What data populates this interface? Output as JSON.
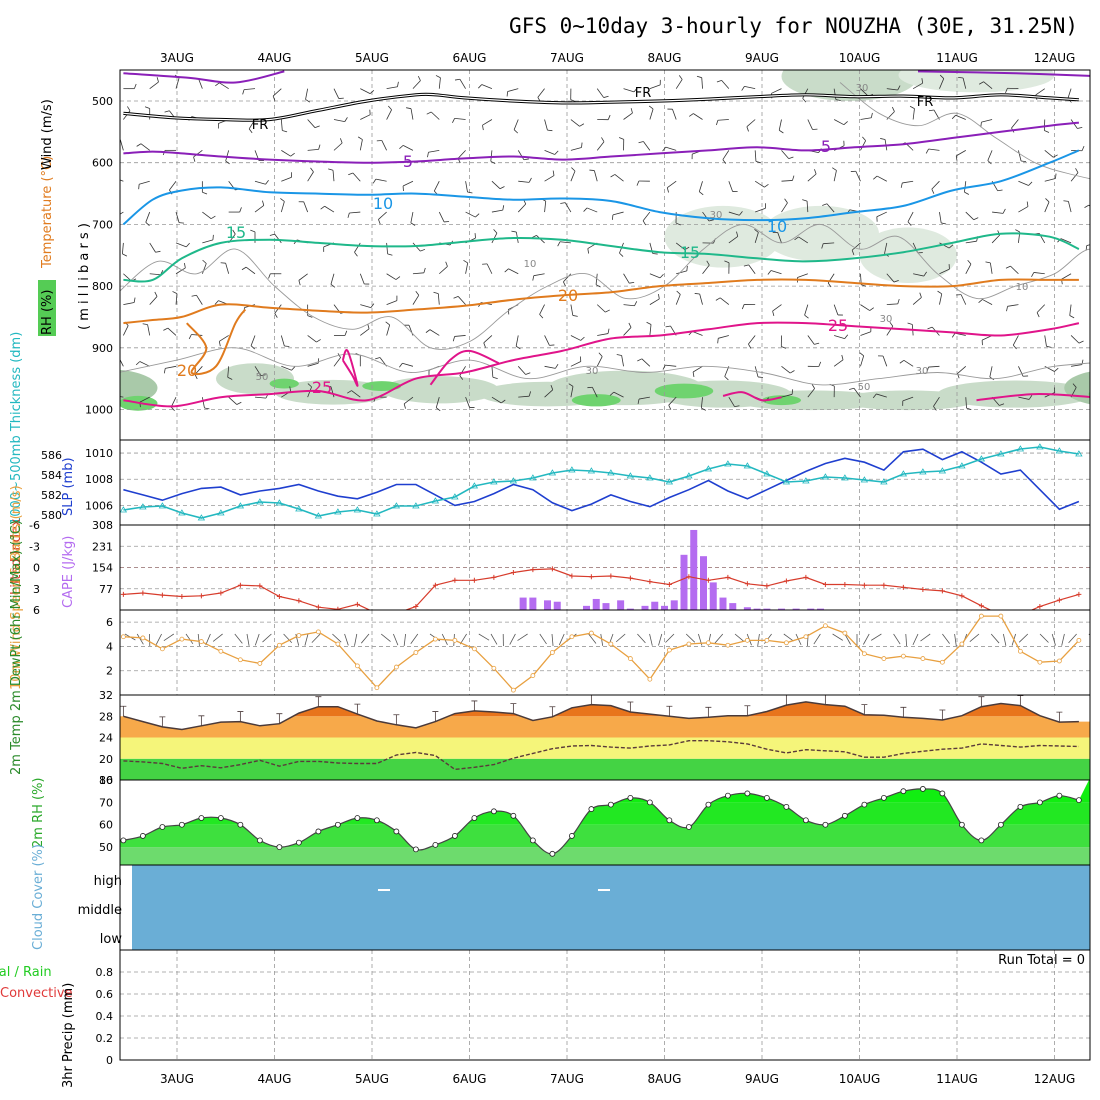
{
  "title": "GFS 0~10day 3-hourly for NOUZHA (30E, 31.25N)",
  "dates": [
    "3AUG",
    "4AUG",
    "5AUG",
    "6AUG",
    "7AUG",
    "8AUG",
    "9AUG",
    "10AUG",
    "11AUG",
    "12AUG"
  ],
  "colors": {
    "purple": "#8a1fb8",
    "blue": "#1a96e6",
    "green": "#1fb88a",
    "orange": "#e07b1e",
    "magenta": "#e0148a",
    "slp": "#1f3fcf",
    "thick": "#23b8c0",
    "cape": "#b46cf0",
    "li": "#d73c2c",
    "wind": "#e8a040",
    "rhgreen": "#22dd22",
    "cloud": "#6aaed6"
  },
  "chart_data": [
    {
      "type": "line",
      "panel": "upper-air",
      "ylabel_rh": "RH (%)",
      "ylabel_t": "Temperature (°C)",
      "ylabel_wind": "Wind (m/s)",
      "ylabel_p": "( m i l l i b a r s )",
      "yticks": [
        500,
        600,
        700,
        800,
        900,
        1000
      ],
      "ylim": [
        450,
        1000
      ],
      "contour_labels": [
        "FR",
        "FR",
        "FR",
        "5",
        "5",
        "10",
        "10",
        "15",
        "15",
        "20",
        "20",
        "25",
        "25",
        "30",
        "30",
        "10",
        "10",
        "30",
        "30",
        "50",
        "30",
        "50"
      ],
      "isotherms": [
        {
          "name": "5",
          "x": [
            0,
            0.3,
            0.6,
            1,
            1.5,
            2,
            2.5,
            3,
            3.5,
            4,
            4.5,
            5,
            5.5,
            6,
            6.5,
            7,
            7.5,
            8,
            8.5,
            9,
            9.5,
            9.8
          ],
          "p": [
            585,
            582,
            585,
            590,
            595,
            598,
            600,
            598,
            593,
            590,
            595,
            590,
            585,
            580,
            575,
            580,
            575,
            570,
            560,
            550,
            540,
            535
          ]
        },
        {
          "name": "10",
          "x": [
            0,
            0.3,
            0.6,
            1,
            1.5,
            2,
            2.5,
            3,
            3.5,
            4,
            4.5,
            5,
            5.5,
            6,
            6.5,
            7,
            7.5,
            8,
            8.5,
            9,
            9.5,
            9.8
          ],
          "p": [
            700,
            660,
            645,
            640,
            648,
            650,
            652,
            650,
            655,
            660,
            658,
            662,
            680,
            690,
            693,
            690,
            680,
            670,
            645,
            630,
            600,
            580
          ]
        },
        {
          "name": "15",
          "x": [
            0,
            0.3,
            0.6,
            1,
            1.5,
            2,
            2.5,
            3,
            3.5,
            4,
            4.5,
            5,
            5.5,
            6,
            6.5,
            7,
            7.5,
            8,
            8.5,
            9,
            9.5,
            9.8
          ],
          "p": [
            790,
            790,
            755,
            730,
            725,
            730,
            735,
            735,
            728,
            722,
            725,
            735,
            745,
            748,
            755,
            760,
            755,
            745,
            730,
            715,
            720,
            740
          ]
        },
        {
          "name": "20",
          "x": [
            0,
            0.3,
            0.6,
            1,
            1.5,
            2,
            2.5,
            3,
            3.5,
            4,
            4.5,
            5,
            5.5,
            6,
            6.5,
            7,
            7.5,
            8,
            8.5,
            9,
            9.5,
            9.8
          ],
          "p": [
            860,
            855,
            850,
            830,
            835,
            840,
            843,
            838,
            832,
            822,
            815,
            810,
            800,
            795,
            790,
            790,
            795,
            800,
            800,
            790,
            790,
            790
          ]
        },
        {
          "name": "25",
          "x": [
            0,
            0.5,
            1,
            1.5,
            2,
            2.5,
            3,
            3.5,
            4,
            4.5,
            5,
            5.5,
            6,
            6.5,
            7,
            7.5,
            8,
            8.5,
            9,
            9.5,
            9.8
          ],
          "p": [
            985,
            995,
            980,
            975,
            970,
            985,
            950,
            940,
            920,
            905,
            885,
            880,
            870,
            860,
            860,
            865,
            870,
            875,
            880,
            870,
            860
          ]
        },
        {
          "name": "FR",
          "x": [
            0,
            0.5,
            1,
            1.5,
            2,
            2.5,
            3,
            3.2,
            3.5,
            4,
            4.5,
            5,
            5.5,
            6,
            6.5,
            7,
            7.5,
            8,
            8.5,
            9,
            9.5,
            9.8
          ],
          "p": [
            520,
            527,
            530,
            530,
            515,
            500,
            490,
            490,
            495,
            500,
            503,
            502,
            500,
            497,
            493,
            490,
            493,
            492,
            495,
            490,
            495,
            498
          ]
        }
      ]
    },
    {
      "type": "line",
      "panel": "thickness-slp",
      "ylabel_left": "1000~500mb Thickness (dm)",
      "ylabel_right": "SLP (mb)",
      "left_ticks": [
        580,
        582,
        584,
        586
      ],
      "right_ticks": [
        1006,
        1008,
        1010
      ],
      "left_ylim": [
        579,
        587.5
      ],
      "right_ylim": [
        1004.5,
        1011
      ],
      "x": [
        0,
        0.2,
        0.4,
        0.6,
        0.8,
        1,
        1.2,
        1.4,
        1.6,
        1.8,
        2,
        2.2,
        2.4,
        2.6,
        2.8,
        3,
        3.2,
        3.4,
        3.6,
        3.8,
        4,
        4.2,
        4.4,
        4.6,
        4.8,
        5,
        5.2,
        5.4,
        5.6,
        5.8,
        6,
        6.2,
        6.4,
        6.6,
        6.8,
        7,
        7.2,
        7.4,
        7.6,
        7.8,
        8,
        8.2,
        8.4,
        8.6,
        8.8,
        9,
        9.2,
        9.4,
        9.6,
        9.8
      ],
      "series": [
        {
          "name": "SLP (mb)",
          "axis": "right",
          "values": [
            1007.2,
            1006.8,
            1006.4,
            1006.9,
            1007.3,
            1007.4,
            1006.8,
            1007.1,
            1007.3,
            1007.6,
            1007.1,
            1006.7,
            1006.5,
            1007.0,
            1007.6,
            1007.6,
            1006.8,
            1006.0,
            1006.3,
            1006.9,
            1007.6,
            1007.2,
            1006.2,
            1005.6,
            1006.1,
            1006.8,
            1006.3,
            1005.9,
            1006.6,
            1007.2,
            1007.9,
            1007.1,
            1006.5,
            1007.2,
            1007.9,
            1008.6,
            1009.2,
            1009.6,
            1009.3,
            1008.7,
            1010.1,
            1010.3,
            1009.5,
            1010.1,
            1009.3,
            1008.4,
            1008.7,
            1007.2,
            1005.7,
            1006.3
          ]
        },
        {
          "name": "1000~500mb Thickness (dm)",
          "axis": "left",
          "values": [
            580.5,
            580.8,
            580.9,
            580.2,
            579.7,
            580.2,
            580.9,
            581.3,
            581.2,
            580.6,
            579.9,
            580.3,
            580.5,
            580.1,
            580.9,
            580.9,
            581.4,
            581.8,
            582.9,
            583.3,
            583.4,
            583.7,
            584.2,
            584.5,
            584.4,
            584.2,
            583.9,
            583.7,
            583.3,
            583.9,
            584.6,
            585.1,
            584.9,
            584.1,
            583.3,
            583.4,
            583.8,
            583.7,
            583.5,
            583.3,
            584.1,
            584.3,
            584.4,
            584.9,
            585.6,
            586.1,
            586.6,
            586.8,
            586.4,
            586.1
          ]
        }
      ]
    },
    {
      "type": "bar",
      "panel": "cape-li",
      "ylabel_left": "Lifted Index",
      "ylabel_right": "CAPE (J/kg)",
      "li_ticks": [
        "-6",
        "-3",
        "0",
        "3",
        "6"
      ],
      "cape_ticks": [
        77,
        154,
        231,
        308
      ],
      "cape_ylim": [
        0,
        308
      ],
      "li_ylim": [
        -6,
        6
      ],
      "cape_x": [
        4.1,
        4.2,
        4.35,
        4.45,
        4.75,
        4.85,
        4.95,
        5.1,
        5.2,
        5.35,
        5.45,
        5.55,
        5.65,
        5.75,
        5.85,
        5.95,
        6.05,
        6.15,
        6.25,
        6.4,
        6.5,
        6.6,
        6.75,
        6.9,
        7.05,
        7.15,
        9.95,
        10.05
      ],
      "cape_values": [
        45,
        45,
        35,
        30,
        15,
        40,
        25,
        35,
        5,
        15,
        30,
        15,
        35,
        200,
        290,
        195,
        100,
        45,
        25,
        10,
        5,
        5,
        5,
        5,
        5,
        5,
        5,
        5
      ],
      "li_x": [
        0,
        0.2,
        0.4,
        0.6,
        0.8,
        1,
        1.2,
        1.4,
        1.6,
        1.8,
        2,
        2.2,
        2.4,
        2.6,
        2.8,
        3,
        3.2,
        3.4,
        3.6,
        3.8,
        4,
        4.2,
        4.4,
        4.6,
        4.8,
        5,
        5.2,
        5.4,
        5.6,
        5.8,
        6,
        6.2,
        6.4,
        6.6,
        6.8,
        7,
        7.2,
        7.4,
        7.6,
        7.8,
        8,
        8.2,
        8.4,
        8.6,
        8.8,
        9,
        9.2,
        9.4,
        9.6,
        9.8
      ],
      "li_values": [
        3.8,
        3.6,
        3.9,
        4.1,
        4.0,
        3.6,
        2.5,
        2.6,
        4.1,
        4.7,
        5.6,
        5.9,
        5.2,
        6.5,
        6.5,
        5.5,
        2.5,
        1.8,
        1.8,
        1.4,
        0.7,
        0.3,
        0.2,
        1.2,
        1.3,
        1.2,
        1.5,
        2.0,
        2.4,
        1.3,
        1.8,
        1.4,
        2.3,
        2.6,
        1.9,
        1.4,
        2.4,
        2.4,
        2.5,
        2.5,
        2.8,
        3.1,
        3.3,
        4.0,
        5.4,
        6.7,
        6.7,
        5.5,
        4.6,
        3.8
      ]
    },
    {
      "type": "line",
      "panel": "wind10m",
      "ylabel": "10m Wind Speed & Barbs (m/s)",
      "yticks": [
        2,
        4,
        6
      ],
      "ylim": [
        0,
        7
      ],
      "x": [
        0,
        0.2,
        0.4,
        0.6,
        0.8,
        1,
        1.2,
        1.4,
        1.6,
        1.8,
        2,
        2.2,
        2.4,
        2.6,
        2.8,
        3,
        3.2,
        3.4,
        3.6,
        3.8,
        4,
        4.2,
        4.4,
        4.6,
        4.8,
        5,
        5.2,
        5.4,
        5.6,
        5.8,
        6,
        6.2,
        6.4,
        6.6,
        6.8,
        7,
        7.2,
        7.4,
        7.6,
        7.8,
        8,
        8.2,
        8.4,
        8.6,
        8.8,
        9,
        9.2,
        9.4,
        9.6,
        9.8
      ],
      "values": [
        4.8,
        4.7,
        3.8,
        4.6,
        4.4,
        3.6,
        2.9,
        2.6,
        4.1,
        4.9,
        5.2,
        4.2,
        2.4,
        0.6,
        2.3,
        3.5,
        4.6,
        4.5,
        3.8,
        2.2,
        0.4,
        1.6,
        3.5,
        4.8,
        5.1,
        4.2,
        3.0,
        1.3,
        3.7,
        4.2,
        4.3,
        4.1,
        4.5,
        4.5,
        4.3,
        4.8,
        5.7,
        5.1,
        3.4,
        3.0,
        3.2,
        3.0,
        2.7,
        4.2,
        6.5,
        6.5,
        3.6,
        2.7,
        2.8,
        4.5
      ]
    },
    {
      "type": "area",
      "panel": "temp2m",
      "ylabel": "2m Temp 2m DewPt (6hr Min/Max) (°C)",
      "yticks": [
        16,
        20,
        24,
        28,
        32
      ],
      "ylim": [
        16,
        32
      ],
      "x": [
        0,
        0.2,
        0.4,
        0.6,
        0.8,
        1,
        1.2,
        1.4,
        1.6,
        1.8,
        2,
        2.2,
        2.4,
        2.6,
        2.8,
        3,
        3.2,
        3.4,
        3.6,
        3.8,
        4,
        4.2,
        4.4,
        4.6,
        4.8,
        5,
        5.2,
        5.4,
        5.6,
        5.8,
        6,
        6.2,
        6.4,
        6.6,
        6.8,
        7,
        7.2,
        7.4,
        7.6,
        7.8,
        8,
        8.2,
        8.4,
        8.6,
        8.8,
        9,
        9.2,
        9.4,
        9.6,
        9.8
      ],
      "temp": [
        28.0,
        27.0,
        26.0,
        25.5,
        26.2,
        26.9,
        27.0,
        26.2,
        26.6,
        28.6,
        29.8,
        29.8,
        28.4,
        27.1,
        26.4,
        25.8,
        27.0,
        28.5,
        29.0,
        28.8,
        28.5,
        27.2,
        27.9,
        29.6,
        30.2,
        30.0,
        28.8,
        28.4,
        28.0,
        27.6,
        27.8,
        28.1,
        28.1,
        28.9,
        30.1,
        30.7,
        30.2,
        29.9,
        28.3,
        28.2,
        27.8,
        27.6,
        27.3,
        28.1,
        29.8,
        30.4,
        30.0,
        28.1,
        26.9,
        27.0
      ],
      "dewpt": [
        19.6,
        19.4,
        19.1,
        18.2,
        18.7,
        18.3,
        18.9,
        19.7,
        18.6,
        19.5,
        19.5,
        19.2,
        19.1,
        19.1,
        20.7,
        21.2,
        20.6,
        18.0,
        18.4,
        18.9,
        20.1,
        21.0,
        21.9,
        22.4,
        22.5,
        22.2,
        22.0,
        22.4,
        22.6,
        23.4,
        23.4,
        23.2,
        22.8,
        21.8,
        21.1,
        21.7,
        21.5,
        21.3,
        20.3,
        20.3,
        21.0,
        21.4,
        21.8,
        22.0,
        22.8,
        22.5,
        22.2,
        22.5,
        22.4,
        22.3
      ]
    },
    {
      "type": "area",
      "panel": "rh2m",
      "ylabel": "2m RH (%)",
      "yticks": [
        50,
        60,
        70,
        80
      ],
      "ylim": [
        42,
        80
      ],
      "x": [
        0,
        0.2,
        0.4,
        0.6,
        0.8,
        1,
        1.2,
        1.4,
        1.6,
        1.8,
        2,
        2.2,
        2.4,
        2.6,
        2.8,
        3,
        3.2,
        3.4,
        3.6,
        3.8,
        4,
        4.2,
        4.4,
        4.6,
        4.8,
        5,
        5.2,
        5.4,
        5.6,
        5.8,
        6,
        6.2,
        6.4,
        6.6,
        6.8,
        7,
        7.2,
        7.4,
        7.6,
        7.8,
        8,
        8.2,
        8.4,
        8.6,
        8.8,
        9,
        9.2,
        9.4,
        9.6,
        9.8
      ],
      "values": [
        53,
        55,
        59,
        60,
        63,
        63,
        60,
        53,
        50,
        52,
        57,
        60,
        63,
        62,
        57,
        49,
        51,
        55,
        63,
        66,
        64,
        53,
        47,
        55,
        67,
        69,
        72,
        70,
        62,
        59,
        69,
        73,
        74,
        72,
        68,
        62,
        60,
        64,
        69,
        72,
        75,
        76,
        74,
        60,
        53,
        60,
        68,
        70,
        73,
        71
      ]
    },
    {
      "type": "table",
      "panel": "cloud",
      "ylabel": "Cloud Cover (%)",
      "levels": [
        "high",
        "middle",
        "low"
      ]
    },
    {
      "type": "bar",
      "panel": "precip",
      "ylabel_left": "Total / Rain Convective",
      "ylabel_right": "3hr Precip (mm)",
      "yticks": [
        "0",
        "0.2",
        "0.4",
        "0.6",
        "0.8"
      ],
      "ylim": [
        0,
        1
      ],
      "run_total": "Run Total = 0",
      "values": []
    }
  ]
}
